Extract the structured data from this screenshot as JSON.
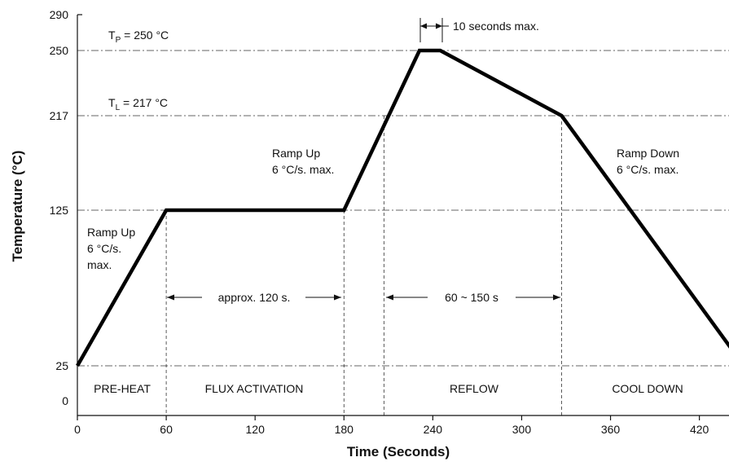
{
  "chart_data": {
    "type": "line",
    "xlabel": "Time (Seconds)",
    "ylabel": "Temperature (°C)",
    "xlim": [
      0,
      450
    ],
    "ylim": [
      0,
      290
    ],
    "x_ticks": [
      "0",
      "60",
      "120",
      "180",
      "240",
      "300",
      "360",
      "420"
    ],
    "x_tick_values": [
      0,
      60,
      120,
      180,
      240,
      300,
      360,
      420
    ],
    "y_ticks": [
      "0",
      "25",
      "125",
      "217",
      "250",
      "290"
    ],
    "y_tick_values": [
      0,
      25,
      125,
      217,
      250,
      290
    ],
    "grid_y_values": [
      25,
      125,
      217,
      250
    ],
    "series": [
      {
        "x": [
          0,
          60,
          180,
          231,
          245,
          327,
          450
        ],
        "y": [
          25,
          125,
          125,
          250,
          250,
          217,
          25
        ]
      }
    ],
    "annotations": {
      "tp_main": "T",
      "tp_sub": "P",
      "tp_rest": " = 250 °C",
      "tl_main": "T",
      "tl_sub": "L",
      "tl_rest": " = 217 °C",
      "ten_seconds": "10 seconds max.",
      "rampup1_line1": "Ramp Up",
      "rampup1_line2": "6 °C/s.",
      "rampup1_line3": "max.",
      "rampup2_line1": "Ramp Up",
      "rampup2_line2": "6 °C/s. max.",
      "rampdown_line1": "Ramp Down",
      "rampdown_line2": "6 °C/s. max.",
      "approx": "approx. 120 s.",
      "reflow_span": "60 ~ 150 s"
    },
    "phases": [
      "PRE-HEAT",
      "FLUX ACTIVATION",
      "REFLOW",
      "COOL DOWN"
    ],
    "phase_boundaries": [
      0,
      60,
      180,
      207,
      327,
      450
    ]
  }
}
